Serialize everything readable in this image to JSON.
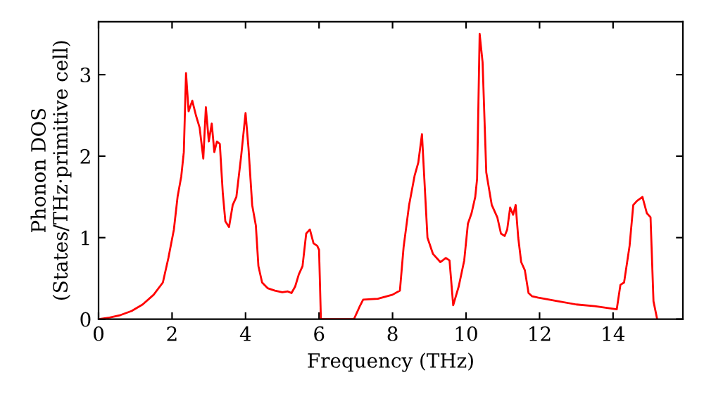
{
  "chart_data": {
    "type": "line",
    "xlabel": "Frequency (THz)",
    "ylabel": "Phonon DOS\n(States/THz·primitive cell)",
    "xlim": [
      0,
      15.9
    ],
    "ylim": [
      0,
      3.65
    ],
    "xticks": [
      0,
      2,
      4,
      6,
      8,
      10,
      12,
      14
    ],
    "yticks": [
      0,
      1,
      2,
      3
    ],
    "grid": false,
    "legend": false,
    "marker": "none",
    "line_style": "solid",
    "series": [
      {
        "color": "#ff0000",
        "x": [
          0,
          0.3,
          0.6,
          0.9,
          1.2,
          1.5,
          1.75,
          1.9,
          2.05,
          2.15,
          2.25,
          2.32,
          2.38,
          2.45,
          2.55,
          2.65,
          2.75,
          2.85,
          2.92,
          3.0,
          3.08,
          3.15,
          3.22,
          3.3,
          3.38,
          3.45,
          3.55,
          3.65,
          3.75,
          3.88,
          4.0,
          4.08,
          4.18,
          4.28,
          4.35,
          4.45,
          4.6,
          4.8,
          5.0,
          5.15,
          5.25,
          5.35,
          5.45,
          5.55,
          5.65,
          5.75,
          5.85,
          5.95,
          6.0,
          6.05,
          6.95,
          7.1,
          7.2,
          7.6,
          8.0,
          8.2,
          8.3,
          8.45,
          8.6,
          8.7,
          8.8,
          8.95,
          9.1,
          9.3,
          9.45,
          9.55,
          9.65,
          9.8,
          9.95,
          10.05,
          10.15,
          10.25,
          10.3,
          10.37,
          10.45,
          10.55,
          10.7,
          10.85,
          10.95,
          11.05,
          11.12,
          11.2,
          11.28,
          11.35,
          11.42,
          11.5,
          11.6,
          11.7,
          11.8,
          12.0,
          12.5,
          13.0,
          13.5,
          14.1,
          14.2,
          14.3,
          14.45,
          14.55,
          14.65,
          14.8,
          14.92,
          15.02,
          15.1,
          15.2
        ],
        "values": [
          0,
          0.02,
          0.05,
          0.1,
          0.18,
          0.3,
          0.45,
          0.75,
          1.1,
          1.5,
          1.75,
          2.05,
          3.02,
          2.55,
          2.68,
          2.5,
          2.35,
          1.97,
          2.6,
          2.18,
          2.4,
          2.05,
          2.18,
          2.15,
          1.55,
          1.2,
          1.13,
          1.4,
          1.5,
          2.0,
          2.53,
          2.1,
          1.4,
          1.15,
          0.65,
          0.45,
          0.38,
          0.35,
          0.33,
          0.34,
          0.32,
          0.4,
          0.55,
          0.65,
          1.05,
          1.1,
          0.93,
          0.9,
          0.85,
          0,
          0,
          0.15,
          0.24,
          0.25,
          0.3,
          0.35,
          0.88,
          1.4,
          1.76,
          1.92,
          2.27,
          1.0,
          0.8,
          0.7,
          0.75,
          0.72,
          0.17,
          0.4,
          0.72,
          1.17,
          1.3,
          1.5,
          1.72,
          3.5,
          3.15,
          1.8,
          1.4,
          1.25,
          1.05,
          1.02,
          1.1,
          1.37,
          1.28,
          1.4,
          1.0,
          0.7,
          0.6,
          0.32,
          0.28,
          0.26,
          0.22,
          0.18,
          0.16,
          0.12,
          0.42,
          0.45,
          0.9,
          1.4,
          1.45,
          1.5,
          1.3,
          1.25,
          0.22,
          0
        ]
      }
    ]
  }
}
